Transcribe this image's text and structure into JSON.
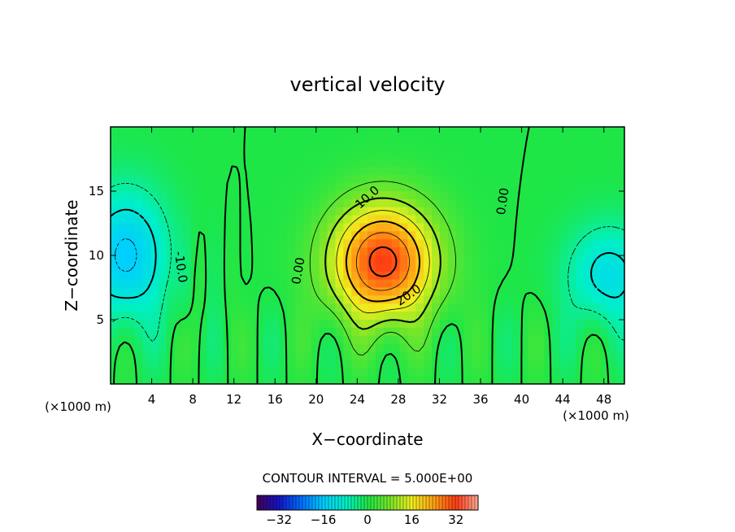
{
  "chart_data": {
    "type": "heatmap",
    "title": "vertical velocity",
    "xlabel": "X−coordinate",
    "ylabel": "Z−coordinate",
    "x_unit": "(×1000 m)",
    "x_unit_right": "(×1000 m)",
    "xlim": [
      0,
      50
    ],
    "ylim": [
      0,
      20
    ],
    "xticks": [
      4,
      8,
      12,
      16,
      20,
      24,
      28,
      32,
      36,
      40,
      44,
      48
    ],
    "yticks": [
      5,
      10,
      15
    ],
    "contour_interval_text": "CONTOUR INTERVAL = 5.000E+00",
    "colorbar": {
      "range": [
        -40,
        40
      ],
      "ticks": [
        -32,
        -16,
        0,
        16,
        32
      ],
      "tick_labels": [
        "−32",
        "−16",
        "0",
        "16",
        "32"
      ]
    },
    "contour_labels": [
      {
        "text": "10.0",
        "x": 25,
        "y": 14.5,
        "angle": -42
      },
      {
        "text": "20.0",
        "x": 29,
        "y": 6.9,
        "angle": -35
      },
      {
        "text": "0.00",
        "x": 18.3,
        "y": 8.8,
        "angle": -80
      },
      {
        "text": "0.00",
        "x": 38.2,
        "y": 14.2,
        "angle": -82
      },
      {
        "text": "-10.0",
        "x": 6.8,
        "y": 9.1,
        "angle": 82
      }
    ],
    "field_features": [
      {
        "name": "updraft core",
        "x": 26.5,
        "y": 9.5,
        "value": 32
      },
      {
        "name": "left downdraft core",
        "x": 1.5,
        "y": 10,
        "value": -16
      },
      {
        "name": "right downdraft core",
        "x": 48.5,
        "y": 8.5,
        "value": -12
      }
    ]
  }
}
